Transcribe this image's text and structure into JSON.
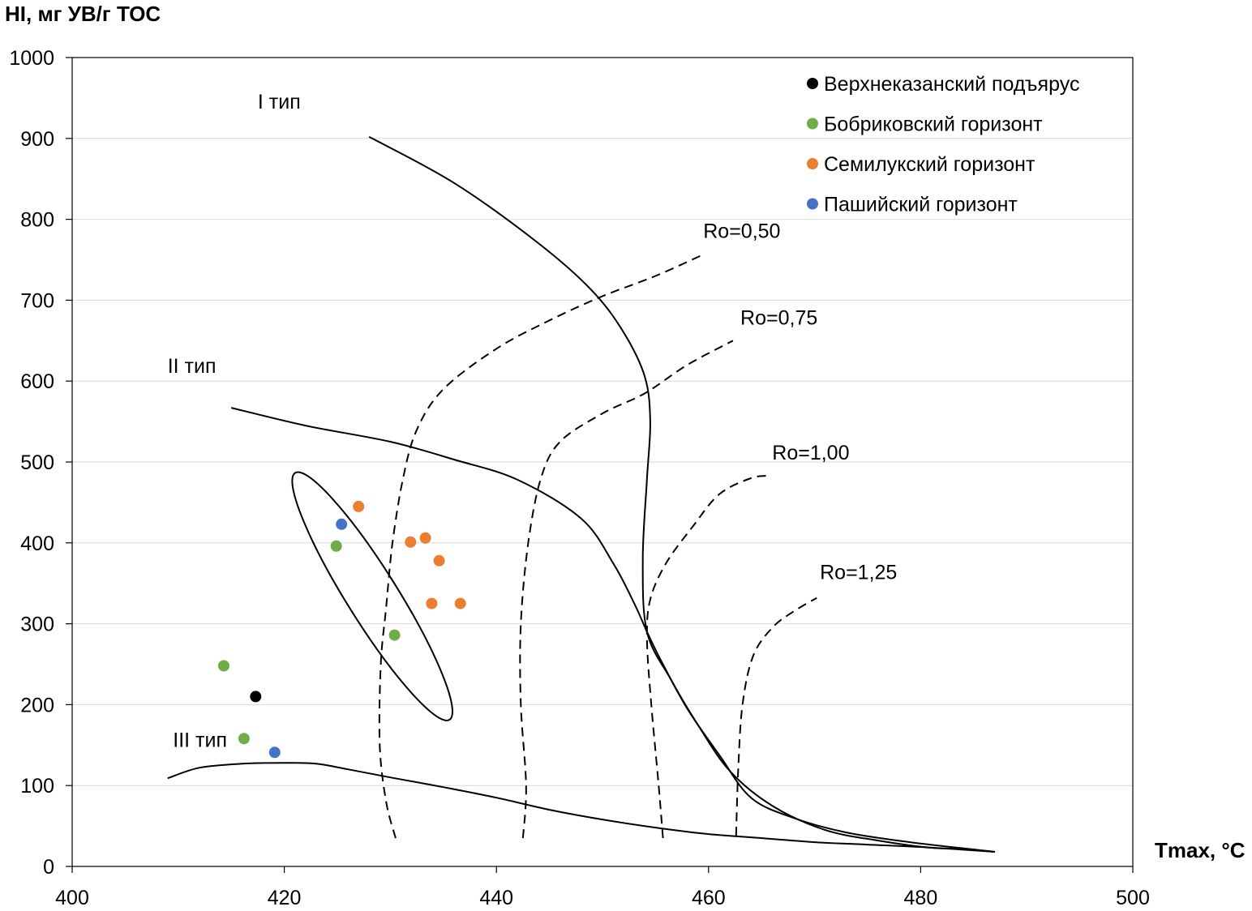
{
  "chart_data": {
    "type": "scatter",
    "title": "",
    "ylabel": "HI, мг УВ/г ТОС",
    "xlabel": "Tmax, °C",
    "xlim": [
      400,
      500
    ],
    "ylim": [
      0,
      1000
    ],
    "xticks": [
      400,
      420,
      440,
      460,
      480,
      500
    ],
    "yticks": [
      0,
      100,
      200,
      300,
      400,
      500,
      600,
      700,
      800,
      900,
      1000
    ],
    "grid": "horizontal",
    "legend_position": "top-right",
    "series": [
      {
        "name": "Верхнеказанский подъярус",
        "color": "#000000",
        "points": [
          [
            417.3,
            210
          ]
        ]
      },
      {
        "name": "Бобриковский горизонт",
        "color": "#70ad47",
        "points": [
          [
            414.3,
            248
          ],
          [
            416.2,
            158
          ],
          [
            424.9,
            396
          ],
          [
            430.4,
            286
          ]
        ]
      },
      {
        "name": "Семилукский горизонт",
        "color": "#ed7d31",
        "points": [
          [
            427.0,
            445
          ],
          [
            431.9,
            401
          ],
          [
            433.3,
            406
          ],
          [
            434.6,
            378
          ],
          [
            433.9,
            325
          ],
          [
            436.6,
            325
          ]
        ]
      },
      {
        "name": "Пашийский горизонт",
        "color": "#4472c4",
        "points": [
          [
            425.4,
            423
          ],
          [
            419.1,
            141
          ]
        ]
      }
    ],
    "kerogen_curves": [
      {
        "label": "I тип",
        "label_at": [
          417.5,
          937
        ],
        "points": [
          [
            428,
            902
          ],
          [
            436,
            845
          ],
          [
            444,
            770
          ],
          [
            449,
            712
          ],
          [
            452,
            660
          ],
          [
            454,
            605
          ],
          [
            454.5,
            550
          ],
          [
            454.2,
            480
          ],
          [
            453.8,
            380
          ],
          [
            454.2,
            290
          ],
          [
            456.5,
            230
          ],
          [
            459,
            175
          ],
          [
            462,
            118
          ],
          [
            466,
            75
          ],
          [
            471,
            45
          ],
          [
            476,
            32
          ],
          [
            481,
            23
          ],
          [
            484,
            22
          ],
          [
            487,
            18
          ]
        ]
      },
      {
        "label": "II тип",
        "label_at": [
          409,
          610
        ],
        "points": [
          [
            415,
            567
          ],
          [
            422,
            545
          ],
          [
            430,
            525
          ],
          [
            436,
            503
          ],
          [
            442,
            478
          ],
          [
            448,
            430
          ],
          [
            451,
            375
          ],
          [
            453,
            325
          ],
          [
            454.2,
            290
          ],
          [
            455.5,
            255
          ],
          [
            458,
            195
          ],
          [
            461,
            138
          ],
          [
            464,
            85
          ],
          [
            468,
            60
          ],
          [
            473,
            42
          ],
          [
            479,
            30
          ],
          [
            487,
            18
          ]
        ]
      },
      {
        "label": "III тип",
        "label_at": [
          409.5,
          148
        ],
        "points": [
          [
            409,
            109
          ],
          [
            412,
            122
          ],
          [
            416,
            127
          ],
          [
            420,
            128
          ],
          [
            423,
            127
          ],
          [
            426,
            120
          ],
          [
            430,
            110
          ],
          [
            435,
            98
          ],
          [
            440,
            85
          ],
          [
            445,
            70
          ],
          [
            450,
            58
          ],
          [
            455,
            48
          ],
          [
            460,
            40
          ],
          [
            465,
            35
          ],
          [
            470,
            30
          ],
          [
            475,
            27
          ],
          [
            480,
            24
          ],
          [
            487,
            18
          ]
        ]
      }
    ],
    "iso_reflectance": [
      {
        "label": "Ro=0,50",
        "label_at": [
          459.5,
          777
        ],
        "points": [
          [
            430.5,
            35
          ],
          [
            429.6,
            80
          ],
          [
            429,
            150
          ],
          [
            429.1,
            250
          ],
          [
            429.6,
            320
          ],
          [
            430.2,
            400
          ],
          [
            431.2,
            480
          ],
          [
            432.5,
            540
          ],
          [
            435,
            590
          ],
          [
            440,
            640
          ],
          [
            445,
            675
          ],
          [
            450,
            705
          ],
          [
            455,
            730
          ],
          [
            459.6,
            757
          ]
        ]
      },
      {
        "label": "Ro=0,75",
        "label_at": [
          463,
          670
        ],
        "points": [
          [
            442.5,
            35
          ],
          [
            442.8,
            100
          ],
          [
            442.3,
            200
          ],
          [
            442.3,
            300
          ],
          [
            443,
            400
          ],
          [
            444.2,
            480
          ],
          [
            446,
            525
          ],
          [
            450,
            560
          ],
          [
            454,
            585
          ],
          [
            458,
            620
          ],
          [
            462.3,
            650
          ]
        ]
      },
      {
        "label": "Ro=1,00",
        "label_at": [
          466,
          503
        ],
        "points": [
          [
            455.7,
            35
          ],
          [
            455.3,
            100
          ],
          [
            454.6,
            200
          ],
          [
            454.2,
            280
          ],
          [
            454.5,
            330
          ],
          [
            456,
            375
          ],
          [
            458.5,
            420
          ],
          [
            461,
            460
          ],
          [
            464,
            480
          ],
          [
            465.9,
            483
          ]
        ]
      },
      {
        "label": "Ro=1,25",
        "label_at": [
          470.5,
          355
        ],
        "points": [
          [
            462.6,
            38
          ],
          [
            462.8,
            120
          ],
          [
            463.2,
            200
          ],
          [
            464.2,
            260
          ],
          [
            466,
            295
          ],
          [
            468,
            315
          ],
          [
            470.2,
            332
          ]
        ]
      }
    ],
    "ellipse": {
      "center": [
        428.3,
        334
      ],
      "semi_axis_x": 2.4,
      "semi_axis_y": 180,
      "rotation_deg": -32
    }
  }
}
